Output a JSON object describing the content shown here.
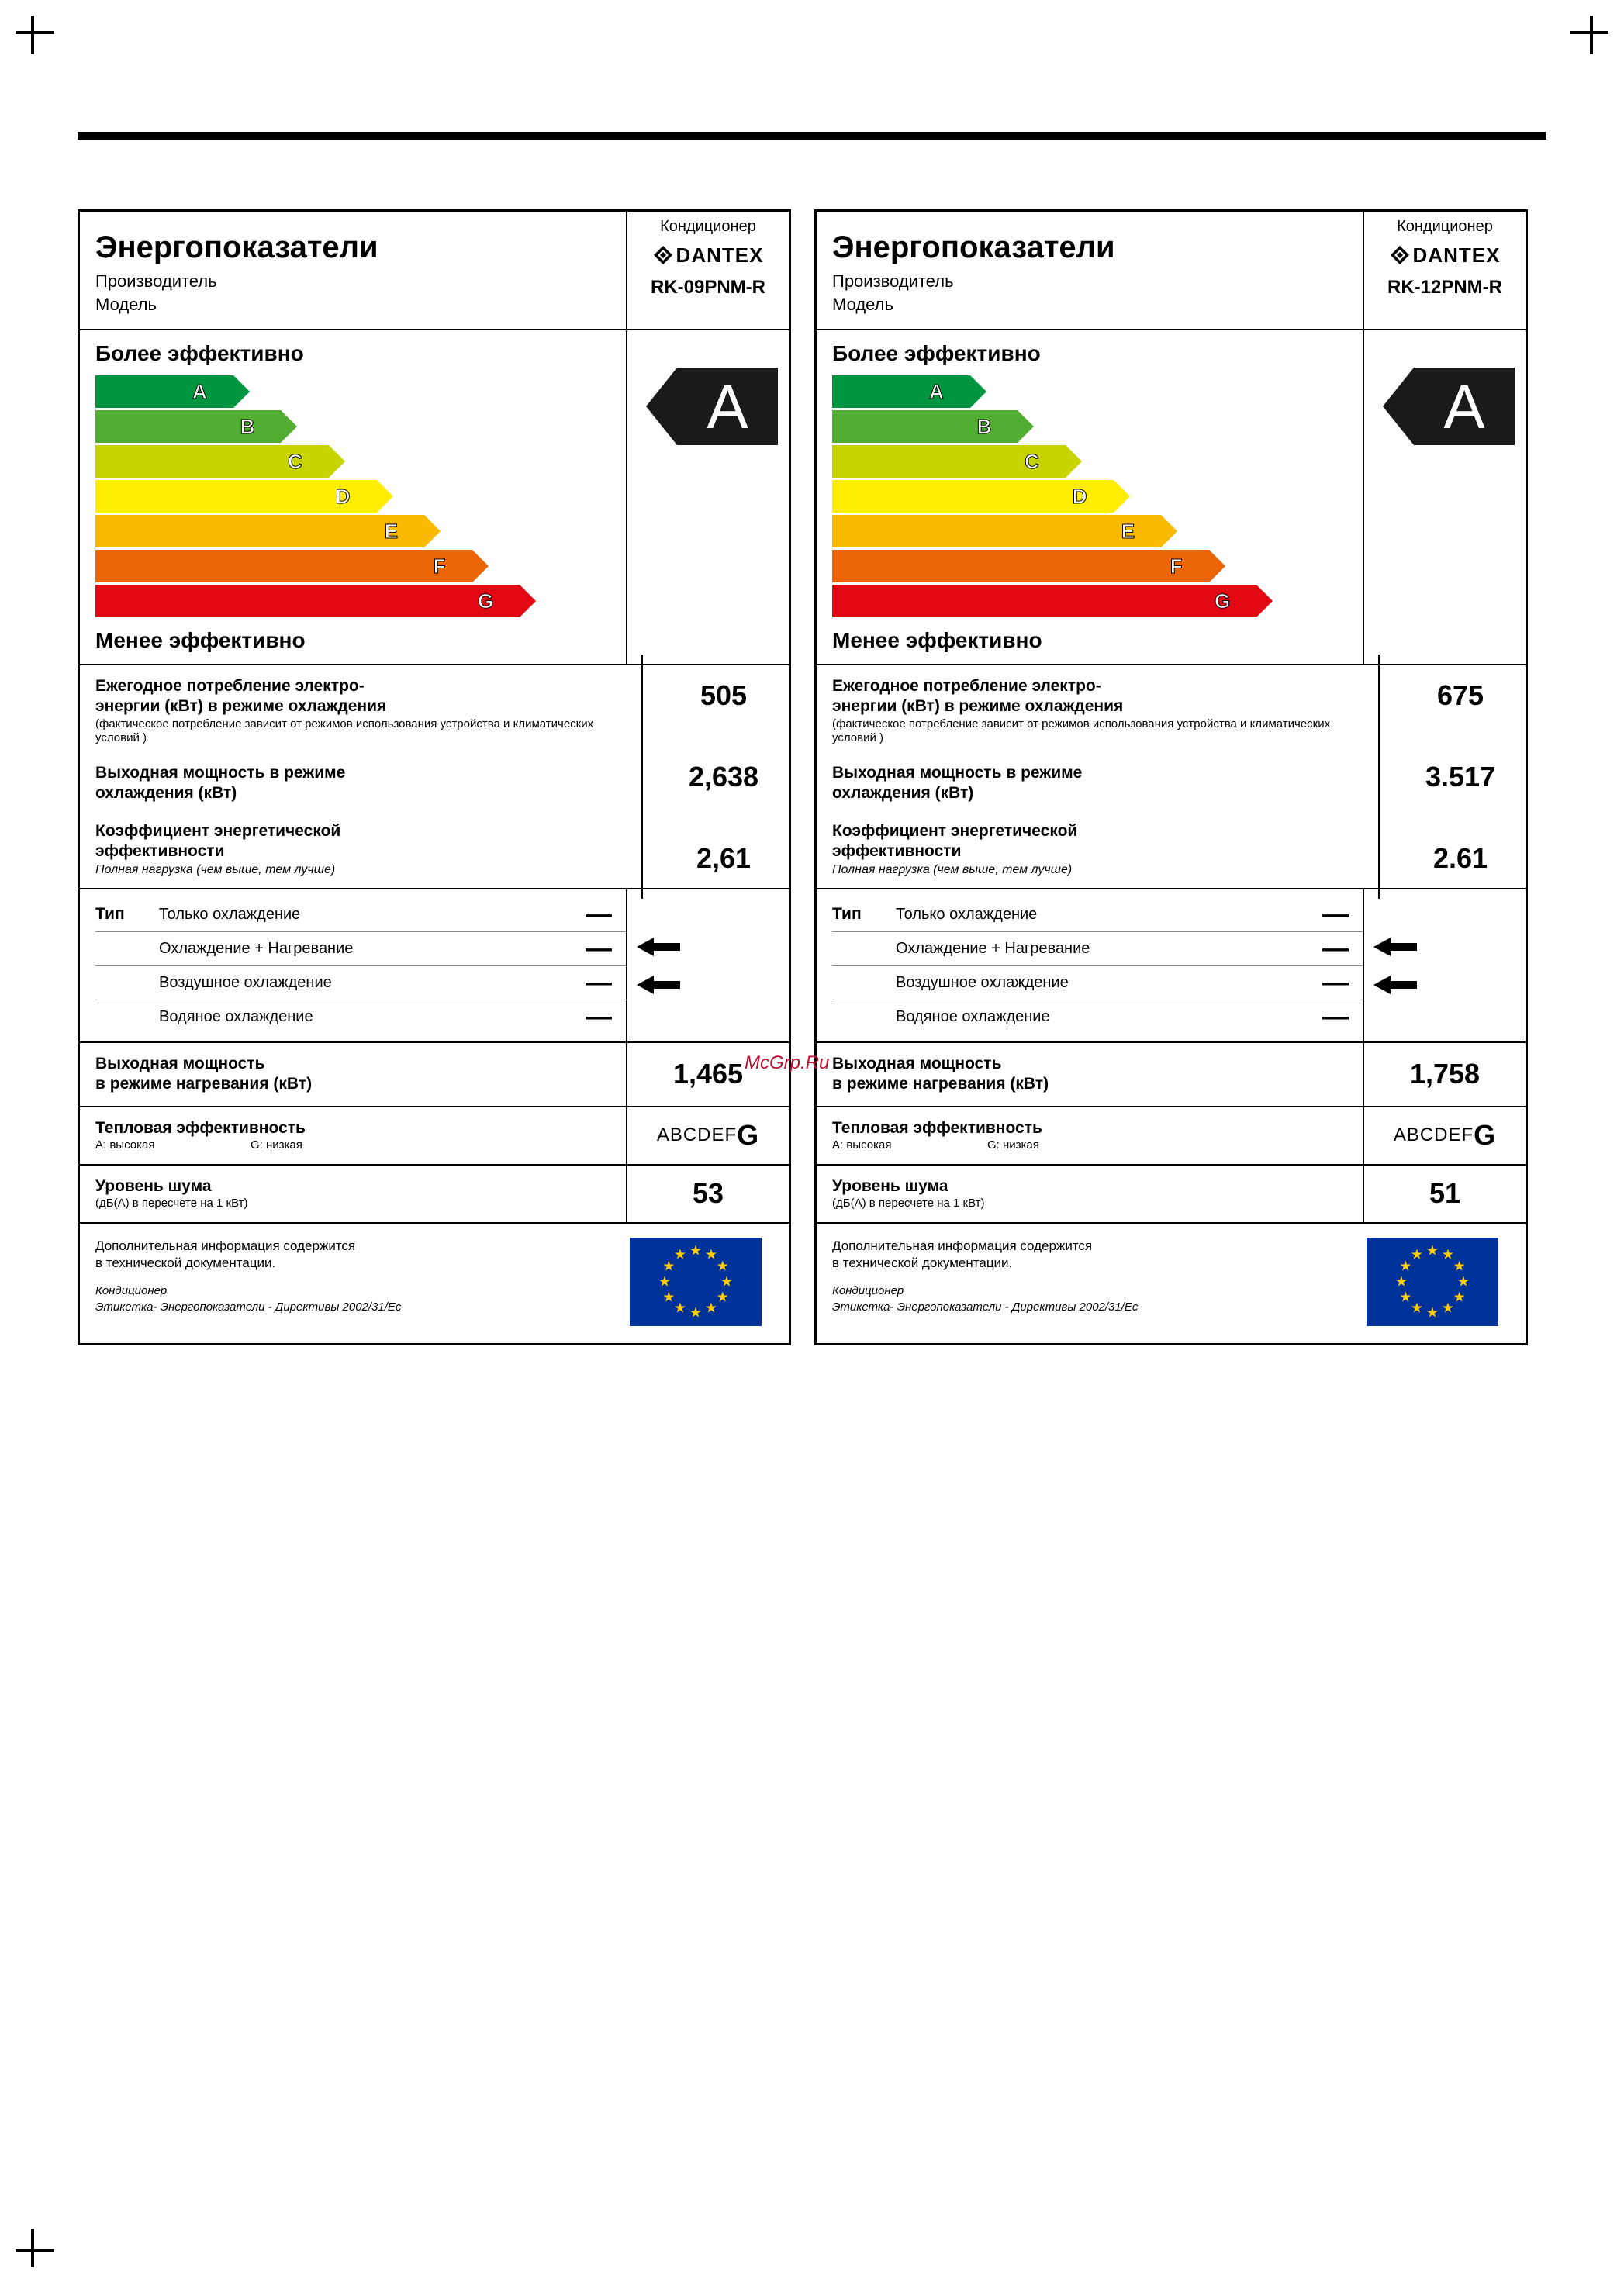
{
  "page": {
    "crop_marks": true,
    "top_rule_color": "#000000",
    "watermark": "McGrp.Ru"
  },
  "shared": {
    "category_label": "Кондиционер",
    "brand": "DANTEX",
    "title": "Энергопоказатели",
    "manufacturer_label": "Производитель",
    "model_label": "Модель",
    "more_efficient": "Более эффективно",
    "less_efficient": "Менее эффективно",
    "rating_letter": "A",
    "efficiency_bars": [
      {
        "letter": "A",
        "width_pct": 26,
        "color": "#009640"
      },
      {
        "letter": "B",
        "width_pct": 35,
        "color": "#52ae32"
      },
      {
        "letter": "C",
        "width_pct": 44,
        "color": "#c8d400"
      },
      {
        "letter": "D",
        "width_pct": 53,
        "color": "#ffed00"
      },
      {
        "letter": "E",
        "width_pct": 62,
        "color": "#fbba00"
      },
      {
        "letter": "F",
        "width_pct": 71,
        "color": "#ec6608"
      },
      {
        "letter": "G",
        "width_pct": 80,
        "color": "#e30613"
      }
    ],
    "annual_consumption": {
      "l1a": "Ежегодное потребление электро-",
      "l1b": "энергии  (кВт) в режиме охлаждения",
      "l2": "(фактическое потребление зависит от режимов использования устройства и климатических условий )"
    },
    "cooling_output": {
      "l1a": "Выходная мощность в режиме",
      "l1b": "охлаждения  (кВт)"
    },
    "eer": {
      "l1a": "Коэффициент энергетической",
      "l1b": "эффективности",
      "l3": "Полная нагрузка (чем выше, тем лучше)"
    },
    "type": {
      "head": "Тип",
      "rows": [
        {
          "label": "Только охлаждение",
          "arrow": false
        },
        {
          "label": "Охлаждение + Нагревание",
          "arrow": true
        },
        {
          "label": "Воздушное охлаждение",
          "arrow": true
        },
        {
          "label": "Водяное охлаждение",
          "arrow": false
        }
      ]
    },
    "heating_output": {
      "l1a": "Выходная мощность",
      "l1b": "в режиме нагревания (кВт)"
    },
    "thermal_eff": {
      "l1": "Тепловая эффективность",
      "sub_a": "A: высокая",
      "sub_g": "G: низкая",
      "scale": "ABCDEF",
      "scale_big": "G"
    },
    "noise": {
      "l1": "Уровень шума",
      "l2": "(дБ(A) в пересчете на 1 кВт)"
    },
    "footer": {
      "f1a": "Дополнительная информация содержится",
      "f1b": "в технической документации.",
      "f2a": "Кондиционер",
      "f2b": "Этикетка- Энергопоказатели - Директивы 2002/31/Ес"
    },
    "eu_flag": {
      "bg": "#003399",
      "star": "#ffcc00",
      "stars": 12
    }
  },
  "labels": [
    {
      "model": "RK-09PNM-R",
      "annual_kwh": "505",
      "cooling_kw": "2,638",
      "eer_value": "2,61",
      "heating_kw": "1,465",
      "noise_db": "53"
    },
    {
      "model": "RK-12PNM-R",
      "annual_kwh": "675",
      "cooling_kw": "3.517",
      "eer_value": "2.61",
      "heating_kw": "1,758",
      "noise_db": "51"
    }
  ]
}
